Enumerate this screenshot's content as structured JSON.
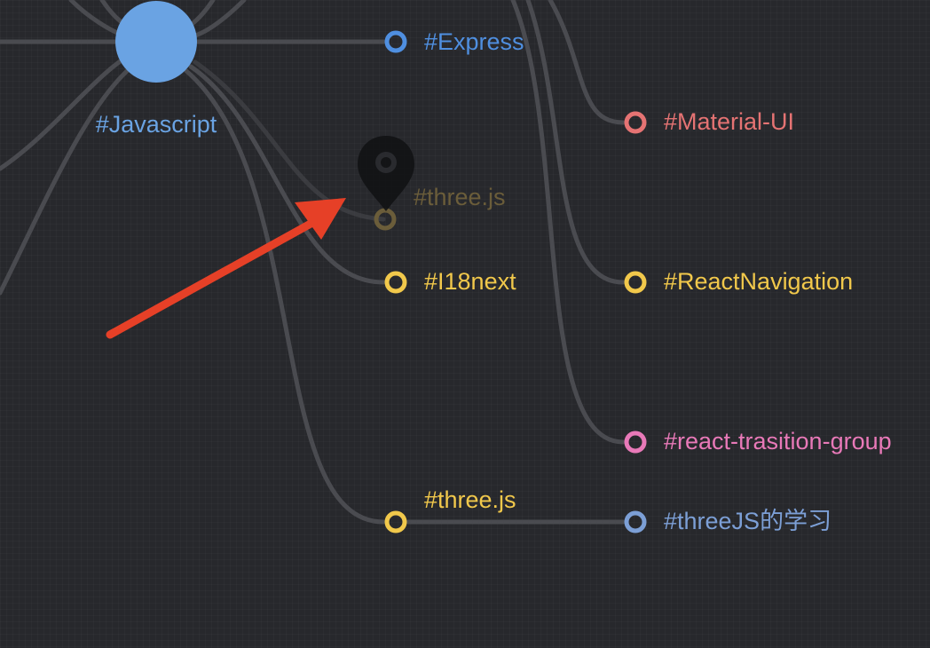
{
  "graph": {
    "center_node": {
      "label": "#Javascript",
      "color": "#6aa3e3"
    },
    "edge_color": "#4a4b50",
    "nodes": [
      {
        "id": "express",
        "label": "#Express",
        "color": "#4f8fe0"
      },
      {
        "id": "material-ui",
        "label": "#Material-UI",
        "color": "#e57373"
      },
      {
        "id": "three-js-dragging",
        "label": "#three.js",
        "color": "#6b5d3a",
        "state": "dragging"
      },
      {
        "id": "i18next",
        "label": "#I18next",
        "color": "#f1c84b"
      },
      {
        "id": "react-navigation",
        "label": "#ReactNavigation",
        "color": "#f1c84b"
      },
      {
        "id": "react-transition-group",
        "label": "#react-trasition-group",
        "color": "#e879b8"
      },
      {
        "id": "three-js",
        "label": "#three.js",
        "color": "#f1c84b"
      },
      {
        "id": "threejs-learning",
        "label": "#threeJS的学习",
        "color": "#7c9fd6"
      }
    ],
    "pin_icon": "map-pin-icon",
    "annotation": {
      "icon": "arrow-icon",
      "color": "#e64027"
    }
  }
}
